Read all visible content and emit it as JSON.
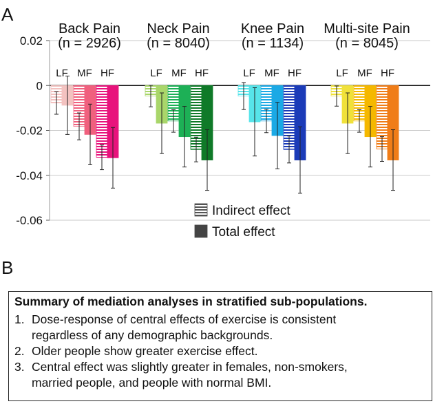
{
  "panel_a_label": "A",
  "panel_b_label": "B",
  "chart_data": {
    "type": "bar",
    "title": "",
    "xlabel": "",
    "ylabel": "",
    "ylim": [
      -0.06,
      0.02
    ],
    "yticks": [
      0.02,
      0,
      -0.02,
      -0.04,
      -0.06
    ],
    "ytick_labels": [
      "0.02",
      "0",
      "-0.02",
      "-0.04",
      "-0.06"
    ],
    "grid": "horizontal",
    "legend_position": "bottom-center",
    "legend": [
      {
        "label": "Indirect effect",
        "pattern": "hatched"
      },
      {
        "label": "Total effect",
        "pattern": "solid"
      }
    ],
    "subgroup_labels": [
      "LF",
      "MF",
      "HF"
    ],
    "groups": [
      {
        "name": "Back Pain",
        "n": "(n = 2926)",
        "colors": [
          "#f3c2c0",
          "#f0607e",
          "#e8137c"
        ],
        "indirect": [
          -0.0078,
          -0.0182,
          -0.032
        ],
        "indirect_err": [
          0.005,
          0.006,
          0.0055
        ],
        "total": [
          -0.0088,
          -0.0218,
          -0.0322
        ],
        "total_err": [
          0.013,
          0.0135,
          0.0135
        ]
      },
      {
        "name": "Neck Pain",
        "n": "(n = 8040)",
        "colors": [
          "#a9d66a",
          "#1db056",
          "#0f7a28"
        ],
        "indirect": [
          -0.0047,
          -0.0158,
          -0.0285
        ],
        "indirect_err": [
          0.0048,
          0.005,
          0.0055
        ],
        "total": [
          -0.0168,
          -0.0228,
          -0.0332
        ],
        "total_err": [
          0.0135,
          0.0135,
          0.0135
        ]
      },
      {
        "name": "Knee Pain",
        "n": "(n = 1134)",
        "colors": [
          "#57e4ea",
          "#1ba9e5",
          "#1b3bb8"
        ],
        "indirect": [
          -0.0047,
          -0.0158,
          -0.0285
        ],
        "indirect_err": [
          0.006,
          0.0052,
          0.006
        ],
        "total": [
          -0.0162,
          -0.0223,
          -0.0332
        ],
        "total_err": [
          0.0152,
          0.0148,
          0.0148
        ]
      },
      {
        "name": "Multi-site Pain",
        "n": "(n = 8045)",
        "colors": [
          "#f0e13a",
          "#f5b800",
          "#f07d18"
        ],
        "indirect": [
          -0.0047,
          -0.0158,
          -0.0283
        ],
        "indirect_err": [
          0.0045,
          0.005,
          0.0055
        ],
        "total": [
          -0.0168,
          -0.0228,
          -0.0332
        ],
        "total_err": [
          0.0135,
          0.0135,
          0.0135
        ]
      }
    ]
  },
  "summary": {
    "title": "Summary of mediation analyses in stratified sub-populations.",
    "items": [
      {
        "num": "1.",
        "lines": [
          "Dose-response of central effects of exercise is consistent",
          "regardless of any demographic backgrounds."
        ]
      },
      {
        "num": "2.",
        "lines": [
          "Older people show greater exercise effect."
        ]
      },
      {
        "num": "3.",
        "lines": [
          "Central effect was slightly greater in females, non-smokers,",
          "married people, and people with normal BMI."
        ]
      }
    ]
  }
}
